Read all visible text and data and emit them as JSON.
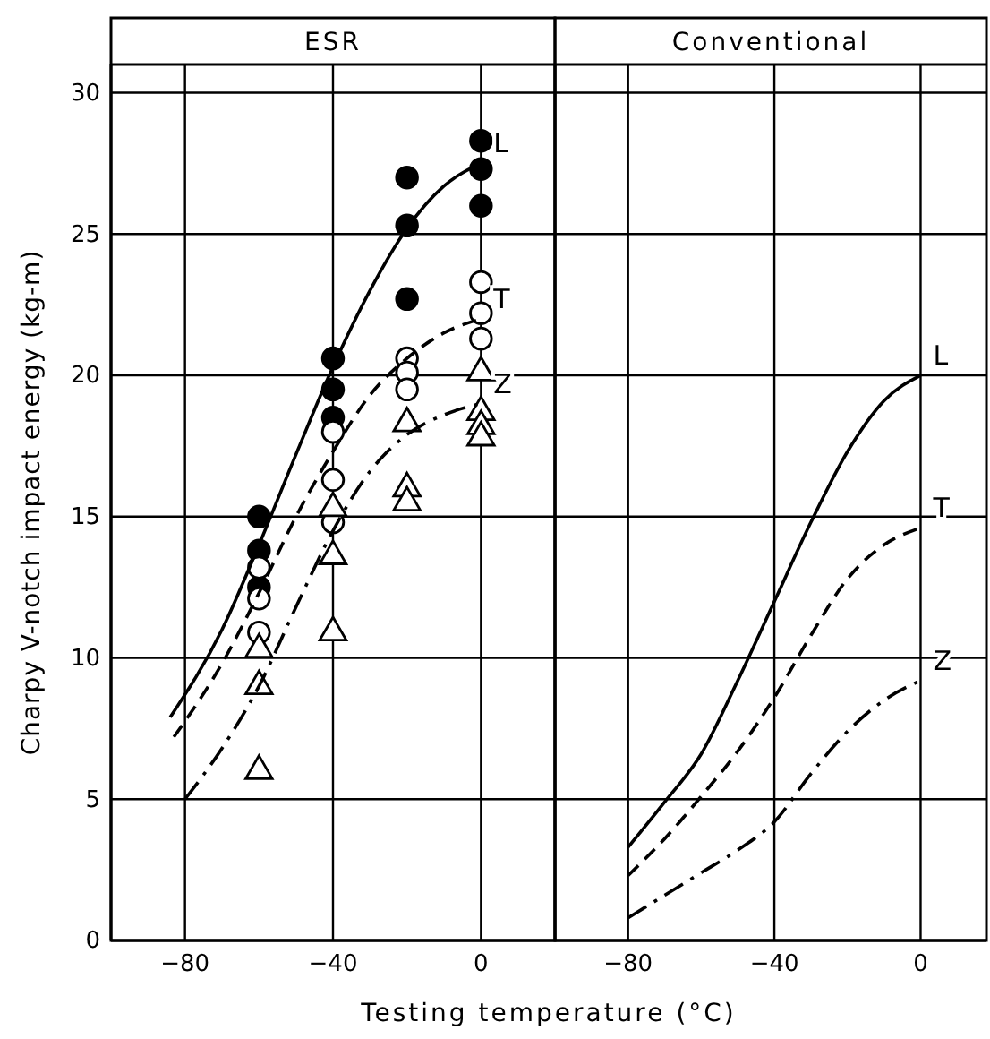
{
  "chart_data": [
    {
      "type": "line",
      "title": "ESR",
      "ylabel": "Charpy V-notch impact energy  (kg-m)",
      "xlabel": "Testing temperature  (°C)",
      "xlim": [
        -100,
        20
      ],
      "xticks": [
        -80,
        -40,
        0
      ],
      "ylim": [
        0,
        31
      ],
      "yticks": [
        0,
        5,
        10,
        15,
        20,
        25,
        30
      ],
      "grid": true,
      "series": [
        {
          "type": "scatter",
          "marker": "circle",
          "color": "#000000",
          "x": [
            -60,
            -60,
            -60,
            -40,
            -40,
            -40,
            -20,
            -20,
            -20,
            0,
            0,
            0
          ],
          "values": [
            15.0,
            13.8,
            12.5,
            20.6,
            19.5,
            18.5,
            27.0,
            25.3,
            22.7,
            28.3,
            27.3,
            26.0
          ]
        },
        {
          "type": "scatter",
          "marker": "circle",
          "color": "#ffffff",
          "x": [
            -60,
            -60,
            -60,
            -40,
            -40,
            -40,
            -20,
            -20,
            -20,
            0,
            0,
            0
          ],
          "values": [
            13.2,
            12.1,
            10.9,
            18.0,
            16.3,
            14.8,
            20.6,
            20.1,
            19.5,
            23.3,
            22.2,
            21.3
          ]
        },
        {
          "type": "scatter",
          "marker": "triangle",
          "color": "#ffffff",
          "x": [
            -60,
            -60,
            -60,
            -40,
            -40,
            -40,
            -20,
            -20,
            -20,
            0,
            0,
            0,
            0
          ],
          "values": [
            10.3,
            9.0,
            6.0,
            15.3,
            13.6,
            10.9,
            18.3,
            16.0,
            15.5,
            20.1,
            18.7,
            18.2,
            17.8
          ]
        },
        {
          "name": "L",
          "line_style": "solid",
          "color": "#000000",
          "x": [
            -84,
            -70,
            -60,
            -50,
            -40,
            -30,
            -20,
            -10,
            0
          ],
          "values": [
            7.9,
            11.0,
            14.0,
            17.2,
            20.3,
            23.0,
            25.2,
            26.7,
            27.5
          ]
        },
        {
          "name": "T",
          "line_style": "dashed",
          "color": "#000000",
          "x": [
            -83,
            -70,
            -60,
            -50,
            -40,
            -30,
            -20,
            -10,
            0
          ],
          "values": [
            7.2,
            9.8,
            12.3,
            15.0,
            17.3,
            19.3,
            20.6,
            21.5,
            22.0
          ]
        },
        {
          "name": "Z",
          "line_style": "dashdot",
          "color": "#000000",
          "x": [
            -80,
            -70,
            -60,
            -50,
            -40,
            -30,
            -20,
            -10,
            0
          ],
          "values": [
            5.0,
            6.8,
            9.0,
            11.8,
            14.5,
            16.6,
            17.9,
            18.6,
            19.0
          ]
        }
      ]
    },
    {
      "type": "line",
      "title": "Conventional",
      "xlim": [
        -100,
        18
      ],
      "xticks": [
        -80,
        -40,
        0
      ],
      "ylim": [
        0,
        31
      ],
      "yticks": [
        0,
        5,
        10,
        15,
        20,
        25,
        30
      ],
      "grid": true,
      "tick_labels": "x",
      "series": [
        {
          "name": "L",
          "line_style": "solid",
          "color": "#000000",
          "x": [
            -80,
            -70,
            -60,
            -50,
            -40,
            -30,
            -20,
            -10,
            0
          ],
          "values": [
            3.3,
            4.9,
            6.6,
            9.2,
            12.0,
            14.8,
            17.3,
            19.1,
            20.0
          ]
        },
        {
          "name": "T",
          "line_style": "dashed",
          "color": "#000000",
          "x": [
            -80,
            -70,
            -60,
            -50,
            -40,
            -30,
            -20,
            -10,
            0
          ],
          "values": [
            2.3,
            3.6,
            5.1,
            6.7,
            8.6,
            10.8,
            12.8,
            14.0,
            14.6
          ]
        },
        {
          "name": "Z",
          "line_style": "dashdot",
          "color": "#000000",
          "x": [
            -80,
            -70,
            -60,
            -50,
            -40,
            -30,
            -20,
            -10,
            0
          ],
          "values": [
            0.8,
            1.6,
            2.4,
            3.2,
            4.2,
            5.9,
            7.4,
            8.5,
            9.2
          ]
        }
      ]
    }
  ]
}
